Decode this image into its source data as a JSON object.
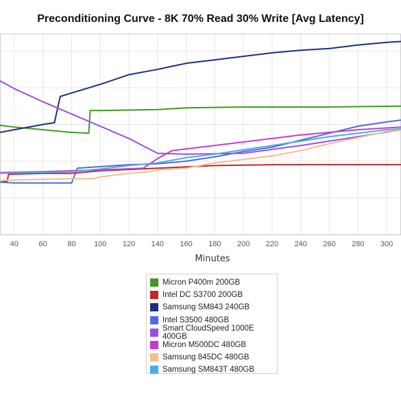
{
  "chart_data": {
    "type": "line",
    "title": "Preconditioning Curve - 8K 70% Read 30% Write [Avg Latency]",
    "xlabel": "Minutes",
    "ylabel": "",
    "xlim": [
      30,
      310
    ],
    "ylim": [
      0,
      11.5
    ],
    "x_ticks": [
      40,
      60,
      80,
      100,
      120,
      140,
      160,
      180,
      200,
      220,
      240,
      260,
      280,
      300
    ],
    "grid": true,
    "legend_position": "bottom",
    "series": [
      {
        "name": "Micron P400m 200GB",
        "color": "#3f9b1e",
        "points": [
          [
            30,
            6.25
          ],
          [
            40,
            6.15
          ],
          [
            60,
            6.0
          ],
          [
            80,
            5.85
          ],
          [
            92,
            5.8
          ],
          [
            93,
            7.1
          ],
          [
            100,
            7.1
          ],
          [
            140,
            7.15
          ],
          [
            160,
            7.25
          ],
          [
            200,
            7.3
          ],
          [
            260,
            7.3
          ],
          [
            310,
            7.35
          ]
        ]
      },
      {
        "name": "Intel DC S3700 200GB",
        "color": "#c0282a",
        "points": [
          [
            30,
            3.0
          ],
          [
            35,
            3.05
          ],
          [
            36,
            3.45
          ],
          [
            60,
            3.5
          ],
          [
            80,
            3.5
          ],
          [
            100,
            3.65
          ],
          [
            140,
            3.8
          ],
          [
            180,
            3.95
          ],
          [
            220,
            4.0
          ],
          [
            260,
            4.0
          ],
          [
            310,
            4.0
          ]
        ]
      },
      {
        "name": "Samsung SM843 240GB",
        "color": "#1b2f7e",
        "points": [
          [
            30,
            5.85
          ],
          [
            40,
            6.0
          ],
          [
            60,
            6.3
          ],
          [
            68,
            6.4
          ],
          [
            72,
            7.9
          ],
          [
            80,
            8.1
          ],
          [
            100,
            8.6
          ],
          [
            120,
            9.15
          ],
          [
            140,
            9.45
          ],
          [
            160,
            9.8
          ],
          [
            180,
            10.0
          ],
          [
            200,
            10.2
          ],
          [
            220,
            10.4
          ],
          [
            240,
            10.55
          ],
          [
            260,
            10.65
          ],
          [
            280,
            10.85
          ],
          [
            300,
            11.0
          ],
          [
            310,
            11.05
          ]
        ]
      },
      {
        "name": "Intel S3500 480GB",
        "color": "#4f69e0",
        "points": [
          [
            30,
            3.0
          ],
          [
            40,
            2.95
          ],
          [
            80,
            2.95
          ],
          [
            84,
            3.8
          ],
          [
            120,
            4.0
          ],
          [
            140,
            4.05
          ],
          [
            160,
            4.2
          ],
          [
            180,
            4.45
          ],
          [
            200,
            4.75
          ],
          [
            220,
            5.0
          ],
          [
            240,
            5.4
          ],
          [
            260,
            5.8
          ],
          [
            280,
            6.2
          ],
          [
            300,
            6.45
          ],
          [
            310,
            6.55
          ]
        ]
      },
      {
        "name": "Smart CloudSpeed 1000E 400GB",
        "color": "#9b4de5",
        "points": [
          [
            30,
            8.8
          ],
          [
            40,
            8.35
          ],
          [
            60,
            7.6
          ],
          [
            80,
            6.9
          ],
          [
            100,
            6.2
          ],
          [
            120,
            5.5
          ],
          [
            140,
            4.65
          ],
          [
            160,
            4.6
          ],
          [
            200,
            4.65
          ],
          [
            240,
            5.1
          ],
          [
            280,
            5.6
          ],
          [
            310,
            6.0
          ]
        ]
      },
      {
        "name": "Micron M500DC 480GB",
        "color": "#c63ad3",
        "points": [
          [
            30,
            3.55
          ],
          [
            60,
            3.6
          ],
          [
            100,
            3.7
          ],
          [
            130,
            3.8
          ],
          [
            140,
            4.35
          ],
          [
            150,
            4.8
          ],
          [
            200,
            5.3
          ],
          [
            240,
            5.7
          ],
          [
            280,
            6.0
          ],
          [
            310,
            6.15
          ]
        ]
      },
      {
        "name": "Samsung 845DC 480GB",
        "color": "#f0be8c",
        "points": [
          [
            30,
            3.1
          ],
          [
            80,
            3.2
          ],
          [
            95,
            3.2
          ],
          [
            100,
            3.3
          ],
          [
            120,
            3.5
          ],
          [
            135,
            3.6
          ],
          [
            140,
            3.7
          ],
          [
            160,
            3.8
          ],
          [
            180,
            4.1
          ],
          [
            200,
            4.3
          ],
          [
            220,
            4.5
          ],
          [
            240,
            4.8
          ],
          [
            260,
            5.2
          ],
          [
            280,
            5.55
          ],
          [
            300,
            5.9
          ],
          [
            310,
            6.0
          ]
        ]
      },
      {
        "name": "Samsung SM843T 480GB",
        "color": "#45aee9",
        "points": [
          [
            30,
            3.5
          ],
          [
            80,
            3.6
          ],
          [
            100,
            3.75
          ],
          [
            120,
            3.95
          ],
          [
            140,
            4.1
          ],
          [
            160,
            4.4
          ],
          [
            180,
            4.6
          ],
          [
            200,
            4.85
          ],
          [
            220,
            5.1
          ],
          [
            240,
            5.35
          ],
          [
            260,
            5.6
          ],
          [
            280,
            5.8
          ],
          [
            300,
            6.0
          ],
          [
            310,
            6.05
          ]
        ]
      }
    ]
  }
}
